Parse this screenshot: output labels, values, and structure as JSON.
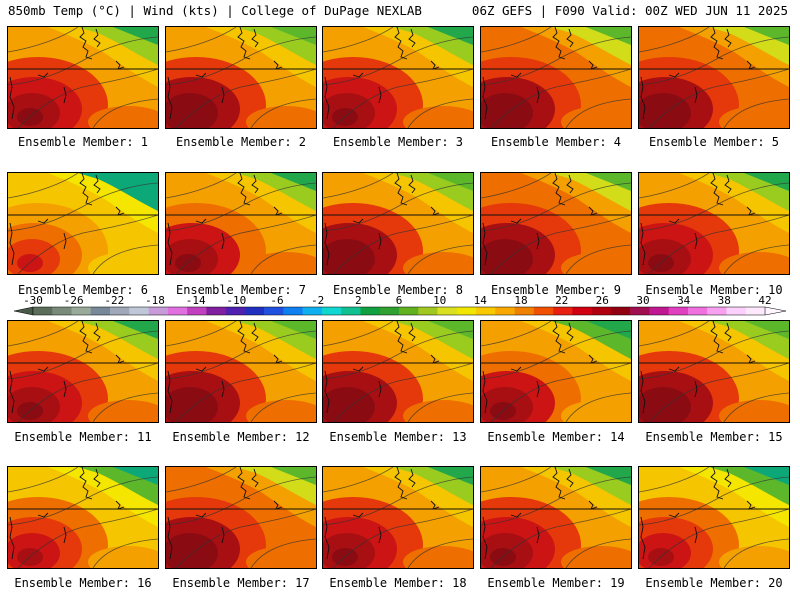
{
  "header": {
    "left": "850mb Temp (°C) | Wind (kts) | College of DuPage NEXLAB",
    "right": "06Z GEFS | F090 Valid: 00Z WED JUN 11 2025"
  },
  "panel_label_prefix": "Ensemble Member: ",
  "members": [
    {
      "number": "1",
      "warmth": 0.62
    },
    {
      "number": "2",
      "warmth": 0.66
    },
    {
      "number": "3",
      "warmth": 0.62
    },
    {
      "number": "4",
      "warmth": 0.74
    },
    {
      "number": "5",
      "warmth": 0.72
    },
    {
      "number": "6",
      "warmth": 0.3
    },
    {
      "number": "7",
      "warmth": 0.58
    },
    {
      "number": "8",
      "warmth": 0.66
    },
    {
      "number": "9",
      "warmth": 0.7
    },
    {
      "number": "10",
      "warmth": 0.62
    },
    {
      "number": "11",
      "warmth": 0.6
    },
    {
      "number": "12",
      "warmth": 0.66
    },
    {
      "number": "13",
      "warmth": 0.66
    },
    {
      "number": "14",
      "warmth": 0.56
    },
    {
      "number": "15",
      "warmth": 0.66
    },
    {
      "number": "16",
      "warmth": 0.46
    },
    {
      "number": "17",
      "warmth": 0.72
    },
    {
      "number": "18",
      "warmth": 0.6
    },
    {
      "number": "19",
      "warmth": 0.6
    },
    {
      "number": "20",
      "warmth": 0.48
    }
  ],
  "colorbar": {
    "labels": [
      "-30",
      "-26",
      "-22",
      "-18",
      "-14",
      "-10",
      "-6",
      "-2",
      "2",
      "6",
      "10",
      "14",
      "18",
      "22",
      "26",
      "30",
      "34",
      "38",
      "42"
    ],
    "colors": [
      "#5a6e5a",
      "#7a8a7a",
      "#9aaa9a",
      "#778899",
      "#a0a8b8",
      "#c0c8d8",
      "#c89cd8",
      "#e070e0",
      "#c040c0",
      "#8020a0",
      "#5020b0",
      "#2030c0",
      "#2050e0",
      "#1080f0",
      "#10b0f0",
      "#10d8d0",
      "#10c090",
      "#10a040",
      "#30a030",
      "#60b020",
      "#a0c820",
      "#d8e020",
      "#f0e600",
      "#f8c800",
      "#f8a800",
      "#f08000",
      "#f05000",
      "#e82010",
      "#d00010",
      "#b00010",
      "#900010",
      "#a01050",
      "#c01890",
      "#e040c0",
      "#f070e0",
      "#f8a0f0",
      "#fcd0fc",
      "#fee8fe"
    ]
  },
  "warmth_palette": [
    "#0da878",
    "#22a84a",
    "#5cb82a",
    "#9acb1f",
    "#d2dc18",
    "#f5e600",
    "#f5c500",
    "#f4a000",
    "#ee6e00",
    "#e5380b",
    "#cc1414",
    "#a80f12",
    "#8a0c12"
  ]
}
